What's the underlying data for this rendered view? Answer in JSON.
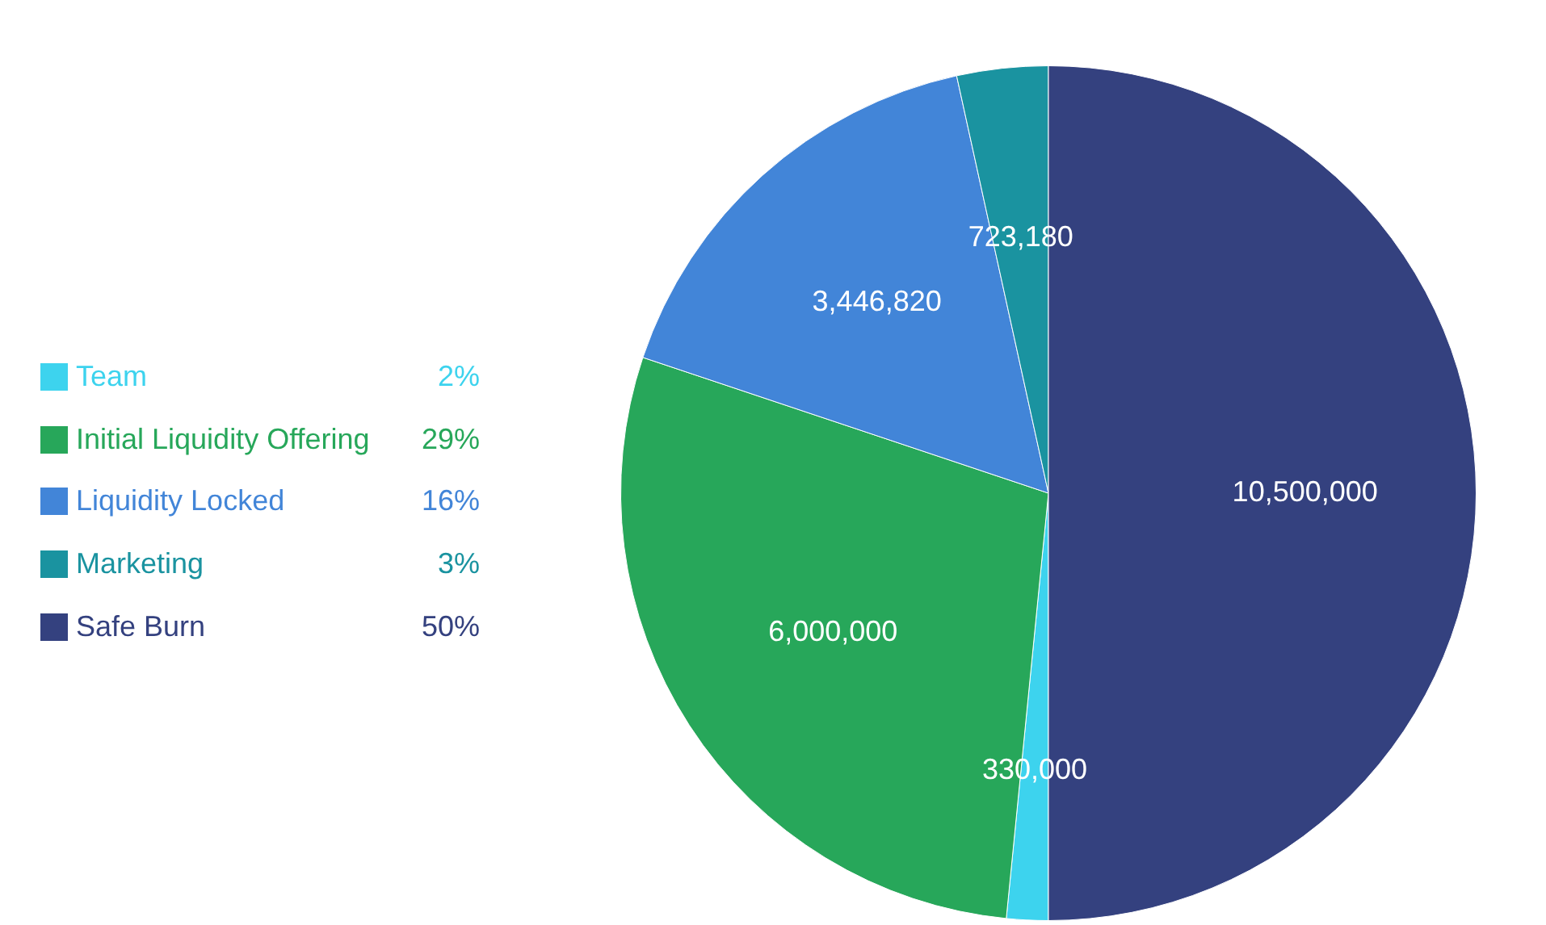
{
  "chart_data": {
    "type": "pie",
    "categories": [
      "Team",
      "Initial Liquidity Offering",
      "Liquidity Locked",
      "Marketing",
      "Safe Burn"
    ],
    "values": [
      330000,
      6000000,
      3446820,
      723180,
      10500000
    ],
    "colors": [
      "#3dd3ee",
      "#27a75a",
      "#4285d8",
      "#1a93a0",
      "#34417f"
    ],
    "value_labels": [
      "330,000",
      "6,000,000",
      "3,446,820",
      "723,180",
      "10,500,000"
    ],
    "legend": "left",
    "annotations": [
      "2%",
      "29%",
      "16%",
      "3%",
      "50%"
    ]
  }
}
